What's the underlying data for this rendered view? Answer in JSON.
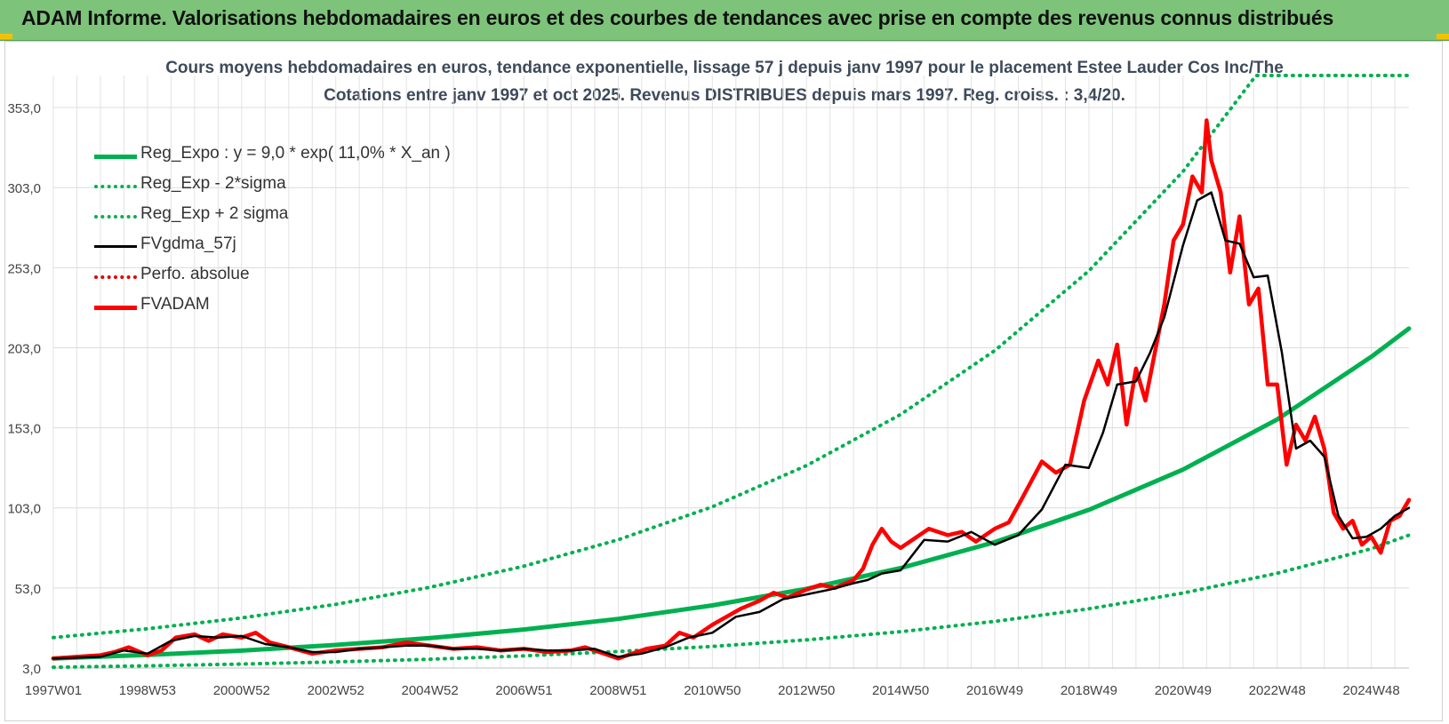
{
  "header": {
    "title": "ADAM Informe. Valorisations hebdomadaires en euros et des courbes de tendances avec prise en compte des revenus connus distribués"
  },
  "chart_data": {
    "type": "line",
    "title": "Cours moyens hebdomadaires en euros, tendance exponentielle, lissage 57 j depuis janv 1997 pour le placement Estee Lauder Cos Inc/The",
    "subtitle": "Cotations entre janv 1997 et oct 2025. Revenus DISTRIBUES depuis mars 1997. Reg. croiss. : 3,4/20.",
    "xlabel": "",
    "ylabel": "",
    "x_range": [
      1997.0,
      2025.8
    ],
    "ylim": [
      3.0,
      373.0
    ],
    "y_ticks": [
      3.0,
      53.0,
      103.0,
      153.0,
      203.0,
      253.0,
      303.0,
      353.0
    ],
    "y_tick_labels": [
      "3,0",
      "53,0",
      "103,0",
      "153,0",
      "203,0",
      "253,0",
      "303,0",
      "353,0"
    ],
    "x_ticks": [
      1997.0,
      1999.0,
      2001.0,
      2003.0,
      2005.0,
      2007.0,
      2009.0,
      2011.0,
      2013.0,
      2015.0,
      2017.0,
      2019.0,
      2021.0,
      2023.0,
      2025.0
    ],
    "x_tick_labels": [
      "1997W01",
      "1998W53",
      "2000W52",
      "2002W52",
      "2004W52",
      "2006W51",
      "2008W51",
      "2010W50",
      "2012W50",
      "2014W50",
      "2016W49",
      "2018W49",
      "2020W49",
      "2022W48",
      "2024W48"
    ],
    "grid": true,
    "legend_position": "top-left",
    "series": [
      {
        "name": "Reg_Expo : y = 9,0 * exp( 11,0% *  X_an )",
        "style": "solid-thick",
        "color": "#00b050",
        "x": [
          1997.0,
          1999.0,
          2001.0,
          2003.0,
          2005.0,
          2007.0,
          2009.0,
          2011.0,
          2013.0,
          2015.0,
          2017.0,
          2019.0,
          2021.0,
          2023.0,
          2025.0,
          2025.8
        ],
        "values": [
          9.0,
          11.2,
          13.9,
          17.4,
          21.7,
          27.1,
          33.7,
          42.1,
          52.5,
          65.4,
          81.6,
          101.8,
          126.9,
          158.2,
          197.4,
          215.0
        ]
      },
      {
        "name": "Reg_Exp - 2*sigma",
        "style": "dotted",
        "color": "#00b050",
        "x": [
          1997.0,
          1999.0,
          2001.0,
          2003.0,
          2005.0,
          2007.0,
          2009.0,
          2011.0,
          2013.0,
          2015.0,
          2017.0,
          2019.0,
          2021.0,
          2023.0,
          2025.0,
          2025.8
        ],
        "values": [
          3.5,
          4.4,
          5.5,
          6.8,
          8.5,
          10.6,
          13.3,
          16.5,
          20.6,
          25.7,
          32.1,
          40.0,
          49.8,
          62.2,
          77.5,
          86.0
        ]
      },
      {
        "name": "Reg_Exp + 2 sigma",
        "style": "dotted",
        "color": "#00b050",
        "x": [
          1997.0,
          1999.0,
          2001.0,
          2003.0,
          2005.0,
          2007.0,
          2009.0,
          2011.0,
          2013.0,
          2015.0,
          2017.0,
          2019.0,
          2021.0,
          2022.55,
          2025.8
        ],
        "values": [
          22.0,
          27.5,
          34.3,
          42.8,
          53.4,
          66.6,
          83.1,
          103.7,
          129.4,
          161.3,
          201.2,
          251.0,
          313.1,
          373.0,
          373.0
        ]
      },
      {
        "name": "FVgdma_57j",
        "style": "solid",
        "color": "#000000",
        "x": [
          1997.0,
          1998.0,
          1998.5,
          1999.0,
          1999.5,
          2000.0,
          2000.5,
          2001.0,
          2001.5,
          2002.0,
          2002.5,
          2003.0,
          2003.5,
          2004.0,
          2004.5,
          2005.0,
          2005.5,
          2006.0,
          2006.5,
          2007.0,
          2007.5,
          2008.0,
          2008.5,
          2009.0,
          2009.5,
          2010.0,
          2010.5,
          2011.0,
          2011.5,
          2012.0,
          2012.5,
          2013.0,
          2013.5,
          2014.0,
          2014.3,
          2014.6,
          2015.0,
          2015.5,
          2016.0,
          2016.5,
          2017.0,
          2017.5,
          2018.0,
          2018.5,
          2019.0,
          2019.3,
          2019.6,
          2020.0,
          2020.3,
          2020.6,
          2021.0,
          2021.3,
          2021.6,
          2021.9,
          2022.2,
          2022.5,
          2022.8,
          2023.1,
          2023.4,
          2023.7,
          2024.0,
          2024.3,
          2024.6,
          2024.9,
          2025.2,
          2025.5,
          2025.8
        ],
        "values": [
          9.0,
          10.0,
          14.0,
          12.0,
          20.0,
          23.0,
          22.0,
          23.0,
          18.0,
          16.0,
          13.0,
          13.0,
          15.0,
          16.0,
          17.0,
          17.0,
          15.0,
          15.0,
          14.0,
          15.0,
          14.0,
          14.0,
          15.0,
          10.0,
          12.0,
          16.0,
          22.0,
          25.0,
          35.0,
          38.0,
          46.0,
          49.0,
          52.0,
          56.0,
          58.0,
          62.0,
          64.0,
          83.0,
          82.0,
          88.0,
          80.0,
          86.0,
          102.0,
          130.0,
          128.0,
          150.0,
          180.0,
          182.0,
          200.0,
          222.0,
          267.0,
          295.0,
          300.0,
          270.0,
          268.0,
          247.0,
          248.0,
          200.0,
          140.0,
          145.0,
          135.0,
          98.0,
          84.0,
          85.0,
          90.0,
          98.0,
          103.0
        ]
      },
      {
        "name": "Perfo. absolue",
        "style": "dotted",
        "color": "#e00000",
        "x": [],
        "values": []
      },
      {
        "name": "FVADAM",
        "style": "solid-thick",
        "color": "#ff0000",
        "x": [
          1997.0,
          1997.5,
          1998.0,
          1998.3,
          1998.6,
          1999.0,
          1999.3,
          1999.6,
          2000.0,
          2000.3,
          2000.6,
          2001.0,
          2001.3,
          2001.6,
          2002.0,
          2002.5,
          2003.0,
          2003.5,
          2004.0,
          2004.5,
          2005.0,
          2005.5,
          2006.0,
          2006.5,
          2007.0,
          2007.5,
          2008.0,
          2008.3,
          2008.6,
          2009.0,
          2009.3,
          2009.6,
          2010.0,
          2010.3,
          2010.6,
          2011.0,
          2011.3,
          2011.6,
          2012.0,
          2012.3,
          2012.6,
          2013.0,
          2013.3,
          2013.6,
          2014.0,
          2014.2,
          2014.4,
          2014.6,
          2014.8,
          2015.0,
          2015.3,
          2015.6,
          2016.0,
          2016.3,
          2016.6,
          2017.0,
          2017.3,
          2017.6,
          2018.0,
          2018.3,
          2018.6,
          2018.9,
          2019.2,
          2019.4,
          2019.6,
          2019.8,
          2020.0,
          2020.2,
          2020.4,
          2020.6,
          2020.8,
          2021.0,
          2021.2,
          2021.4,
          2021.5,
          2021.6,
          2021.8,
          2022.0,
          2022.2,
          2022.4,
          2022.6,
          2022.8,
          2023.0,
          2023.2,
          2023.4,
          2023.6,
          2023.8,
          2024.0,
          2024.2,
          2024.4,
          2024.6,
          2024.8,
          2025.0,
          2025.2,
          2025.4,
          2025.6,
          2025.8
        ],
        "values": [
          9.0,
          10.0,
          11.0,
          13.0,
          16.0,
          11.0,
          14.0,
          22.0,
          24.0,
          20.0,
          24.0,
          22.0,
          25.0,
          19.0,
          16.0,
          12.0,
          14.0,
          15.0,
          16.0,
          19.0,
          17.0,
          15.0,
          16.0,
          14.0,
          15.0,
          13.0,
          14.0,
          16.0,
          13.0,
          9.0,
          12.0,
          15.0,
          17.0,
          25.0,
          22.0,
          30.0,
          35.0,
          40.0,
          45.0,
          50.0,
          47.0,
          52.0,
          55.0,
          53.0,
          58.0,
          65.0,
          80.0,
          90.0,
          82.0,
          78.0,
          84.0,
          90.0,
          86.0,
          88.0,
          82.0,
          90.0,
          94.0,
          110.0,
          132.0,
          125.0,
          130.0,
          170.0,
          195.0,
          180.0,
          205.0,
          155.0,
          190.0,
          170.0,
          200.0,
          230.0,
          270.0,
          280.0,
          310.0,
          300.0,
          345.0,
          320.0,
          300.0,
          250.0,
          285.0,
          230.0,
          240.0,
          180.0,
          180.0,
          130.0,
          155.0,
          145.0,
          160.0,
          140.0,
          100.0,
          90.0,
          95.0,
          80.0,
          85.0,
          75.0,
          95.0,
          98.0,
          108.0
        ]
      }
    ]
  }
}
